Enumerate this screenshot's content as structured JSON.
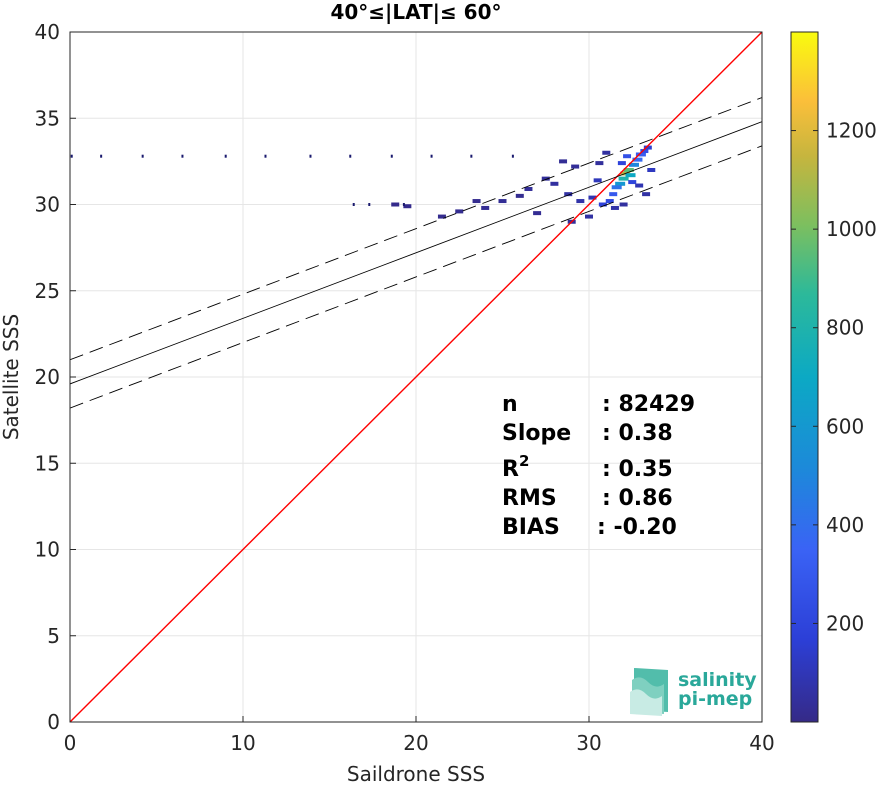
{
  "chart_data": {
    "type": "scatter",
    "title": "40°≤|LAT|≤ 60°",
    "xlabel": "Saildrone SSS",
    "ylabel": "Satellite SSS",
    "xlim": [
      0,
      40
    ],
    "ylim": [
      0,
      40
    ],
    "xticks": [
      0,
      10,
      20,
      30,
      40
    ],
    "yticks": [
      0,
      5,
      10,
      15,
      20,
      25,
      30,
      35,
      40
    ],
    "grid": true,
    "colorbar": {
      "min": 0,
      "max": 1400,
      "ticks": [
        200,
        400,
        600,
        800,
        1000,
        1200
      ],
      "colormap": "parula"
    },
    "lines": [
      {
        "kind": "one-to-one",
        "color": "#ff0000",
        "points": [
          [
            0,
            0
          ],
          [
            40,
            40
          ]
        ]
      },
      {
        "kind": "regression",
        "color": "#000000",
        "points": [
          [
            0,
            19.6
          ],
          [
            40,
            34.8
          ]
        ]
      },
      {
        "kind": "regression-upper",
        "color": "#000000",
        "dash": true,
        "points": [
          [
            0,
            21.0
          ],
          [
            40,
            36.2
          ]
        ]
      },
      {
        "kind": "regression-lower",
        "color": "#000000",
        "dash": true,
        "points": [
          [
            0,
            18.2
          ],
          [
            40,
            33.4
          ]
        ]
      }
    ],
    "density_points": [
      [
        32.1,
        31.8,
        1100
      ],
      [
        32.3,
        32.0,
        950
      ],
      [
        32.0,
        31.5,
        800
      ],
      [
        32.4,
        31.7,
        700
      ],
      [
        31.8,
        31.2,
        600
      ],
      [
        32.6,
        32.3,
        500
      ],
      [
        31.6,
        31.0,
        420
      ],
      [
        32.8,
        32.6,
        380
      ],
      [
        33.0,
        32.9,
        320
      ],
      [
        31.4,
        30.6,
        300
      ],
      [
        32.2,
        32.8,
        260
      ],
      [
        33.2,
        33.1,
        240
      ],
      [
        31.2,
        30.2,
        220
      ],
      [
        30.8,
        30.0,
        180
      ],
      [
        32.5,
        31.3,
        200
      ],
      [
        31.9,
        32.4,
        190
      ],
      [
        33.4,
        33.3,
        150
      ],
      [
        33.6,
        32.0,
        120
      ],
      [
        30.5,
        31.4,
        110
      ],
      [
        30.2,
        30.4,
        90
      ],
      [
        29.5,
        30.2,
        70
      ],
      [
        28.8,
        30.6,
        60
      ],
      [
        28.0,
        31.2,
        50
      ],
      [
        27.5,
        31.5,
        40
      ],
      [
        26.5,
        30.9,
        35
      ],
      [
        25.0,
        30.2,
        30
      ],
      [
        24.0,
        29.8,
        25
      ],
      [
        22.5,
        29.6,
        20
      ],
      [
        21.5,
        29.3,
        15
      ],
      [
        27.0,
        29.5,
        25
      ],
      [
        29.0,
        29.0,
        40
      ],
      [
        30.0,
        29.3,
        60
      ],
      [
        28.5,
        32.5,
        30
      ],
      [
        29.2,
        32.2,
        35
      ],
      [
        30.6,
        32.4,
        45
      ],
      [
        31.0,
        33.0,
        55
      ],
      [
        32.9,
        31.1,
        90
      ],
      [
        33.3,
        30.6,
        60
      ],
      [
        31.5,
        29.8,
        70
      ],
      [
        32.0,
        30.0,
        50
      ],
      [
        26.0,
        30.5,
        20
      ],
      [
        23.5,
        30.2,
        15
      ],
      [
        19.5,
        29.9,
        10
      ],
      [
        18.8,
        30.0,
        8
      ]
    ],
    "sparse_points": [
      [
        0.1,
        32.8
      ],
      [
        1.8,
        32.8
      ],
      [
        4.2,
        32.8
      ],
      [
        6.5,
        32.8
      ],
      [
        9.0,
        32.8
      ],
      [
        11.3,
        32.8
      ],
      [
        13.9,
        32.8
      ],
      [
        16.2,
        32.8
      ],
      [
        18.6,
        32.8
      ],
      [
        20.9,
        32.8
      ],
      [
        23.2,
        32.8
      ],
      [
        25.6,
        32.8
      ],
      [
        16.4,
        30.0
      ],
      [
        17.3,
        30.0
      ],
      [
        19.3,
        30.0
      ]
    ],
    "stats": {
      "labels": [
        "n",
        "Slope",
        "R",
        "RMS",
        "BIAS"
      ],
      "r_superscript": "2",
      "values": [
        ": 82429",
        ": 0.38",
        ": 0.35",
        ": 0.86",
        ": -0.20"
      ]
    },
    "logo": {
      "line1": "salinity",
      "line2": "pi-mep"
    }
  }
}
